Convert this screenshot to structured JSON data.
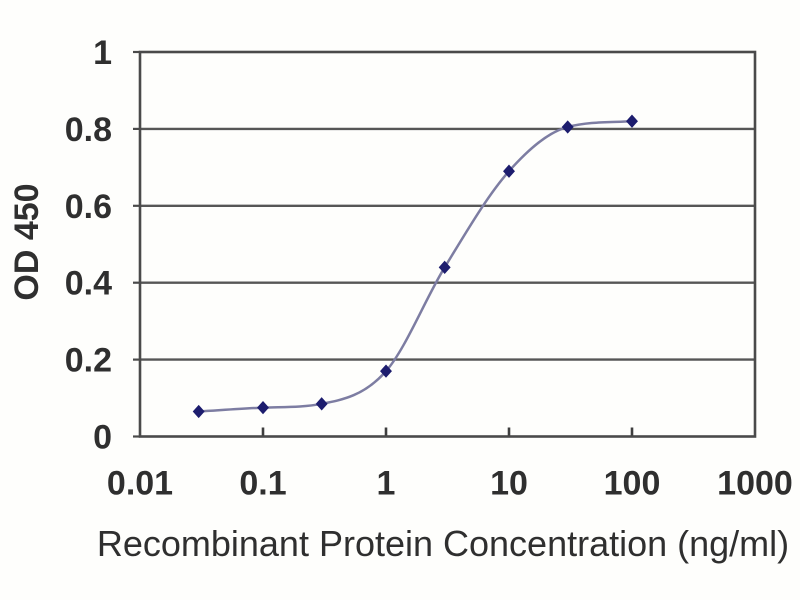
{
  "chart_data": {
    "type": "line",
    "title": "",
    "xlabel": "Recombinant Protein Concentration (ng/ml)",
    "ylabel": "OD 450",
    "x_scale": "log",
    "y_scale": "linear",
    "xlim": [
      0.01,
      1000
    ],
    "ylim": [
      0,
      1
    ],
    "x_tick_values": [
      0.01,
      0.1,
      1,
      10,
      100,
      1000
    ],
    "x_tick_labels": [
      "0.01",
      "0.1",
      "1",
      "10",
      "100",
      "1000"
    ],
    "y_tick_values": [
      0,
      0.2,
      0.4,
      0.6,
      0.8,
      1
    ],
    "y_tick_labels": [
      "0",
      "0.2",
      "0.4",
      "0.6",
      "0.8",
      "1"
    ],
    "grid": "horizontal-only",
    "legend": "none",
    "curve_style": "smooth-sigmoid",
    "series": [
      {
        "marker": "diamond",
        "x": [
          0.03,
          0.1,
          0.3,
          1,
          3,
          10,
          30,
          100
        ],
        "y": [
          0.065,
          0.075,
          0.085,
          0.17,
          0.44,
          0.69,
          0.805,
          0.82
        ]
      }
    ],
    "colors": {
      "marker": "#1d1d6e",
      "line": "#7d7da2",
      "grid": "#565656",
      "axis": "#4a4a4a",
      "text": "#2f2f2f",
      "background": "#fefefc"
    }
  }
}
